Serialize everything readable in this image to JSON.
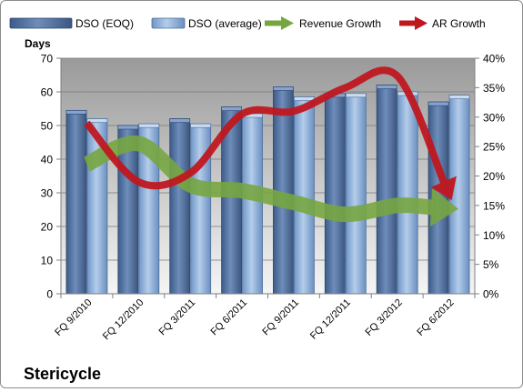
{
  "chart_data": {
    "type": "bar",
    "company": "Stericycle",
    "left_axis_title": "Days",
    "categories": [
      "FQ 9/2010",
      "FQ 12/2010",
      "FQ 3/2011",
      "FQ 6/2011",
      "FQ 9/2011",
      "FQ 12/2011",
      "FQ 3/2012",
      "FQ 6/2012"
    ],
    "series": [
      {
        "name": "DSO (EOQ)",
        "kind": "bar",
        "axis": "left",
        "values": [
          54.5,
          50,
          52,
          55.5,
          61.5,
          59.5,
          62,
          57
        ]
      },
      {
        "name": "DSO (average)",
        "kind": "bar",
        "axis": "left",
        "values": [
          52,
          50.5,
          50.5,
          53.5,
          58.5,
          59.5,
          60,
          59
        ]
      },
      {
        "name": "Revenue Growth",
        "kind": "arrow-line",
        "axis": "right",
        "values": [
          22,
          25.5,
          18.5,
          17.5,
          15.5,
          13.5,
          15,
          14.5
        ]
      },
      {
        "name": "AR Growth",
        "kind": "arrow-line",
        "axis": "right",
        "values": [
          29,
          19,
          20.5,
          30.5,
          31,
          35,
          37,
          17
        ]
      }
    ],
    "ylim_left": [
      0,
      70
    ],
    "yticks_left": [
      "0",
      "10",
      "20",
      "30",
      "40",
      "50",
      "60",
      "70"
    ],
    "ylim_right": [
      0,
      40
    ],
    "yticks_right": [
      "0%",
      "5%",
      "10%",
      "15%",
      "20%",
      "25%",
      "30%",
      "35%",
      "40%"
    ],
    "grid": true,
    "legend_position": "top",
    "colors": {
      "dso_eoq": "#4f6e9d",
      "dso_avg": "#8eb1dc",
      "revenue_growth": "#77a641",
      "ar_growth": "#c0171f",
      "plot_top": "#9a9a9a",
      "plot_bottom": "#f5f5f5"
    }
  }
}
